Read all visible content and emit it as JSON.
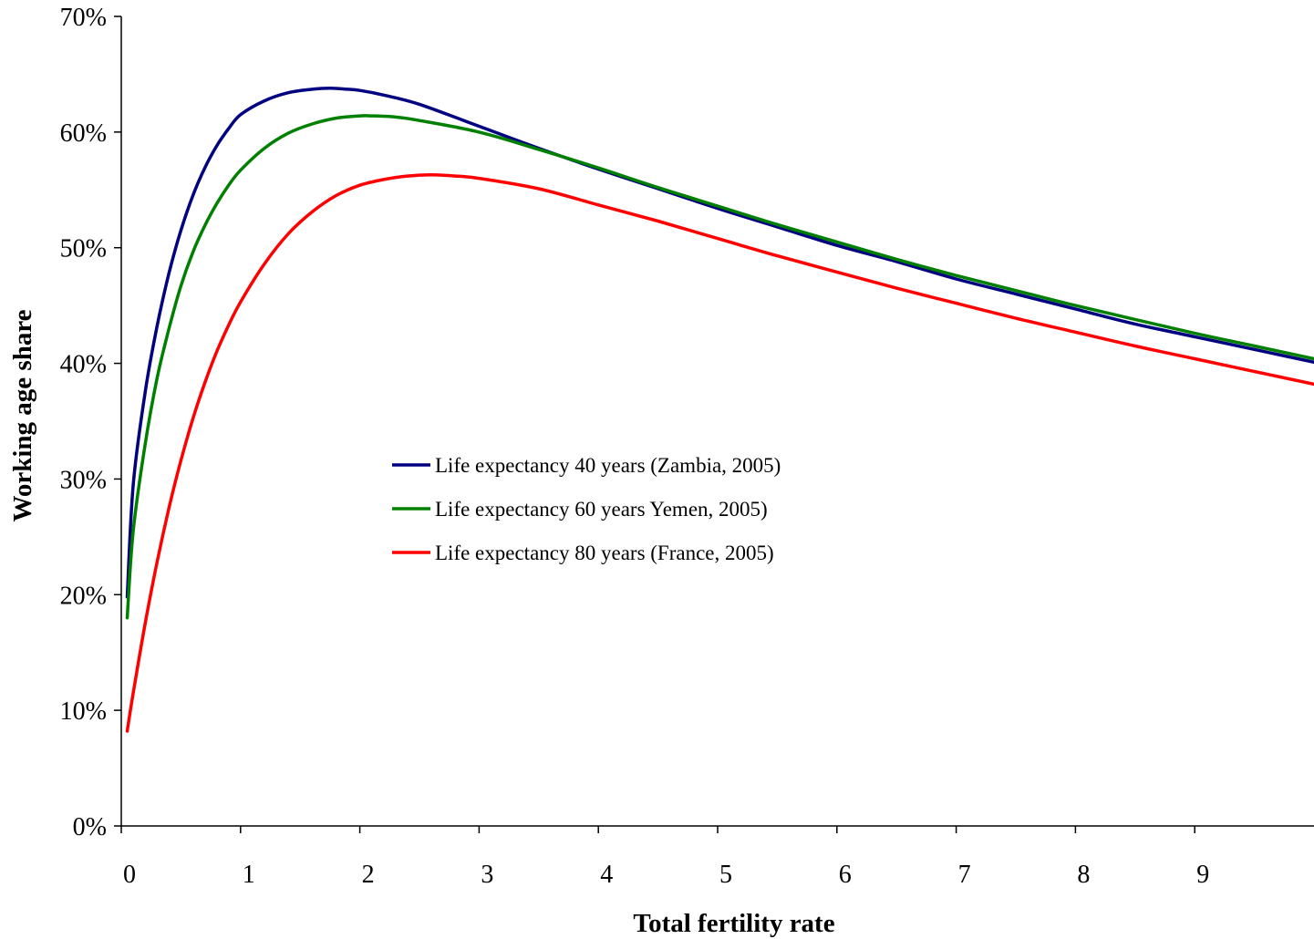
{
  "chart_data": {
    "type": "line",
    "title": "",
    "xlabel": "Total fertility rate",
    "ylabel": "Working age share",
    "xlim": [
      0,
      10
    ],
    "ylim": [
      0,
      70
    ],
    "x_ticks": [
      0,
      1,
      2,
      3,
      4,
      5,
      6,
      7,
      8,
      9
    ],
    "x_tick_labels": [
      "0",
      "1",
      "2",
      "3",
      "4",
      "5",
      "6",
      "7",
      "8",
      "9"
    ],
    "y_ticks": [
      0,
      10,
      20,
      30,
      40,
      50,
      60,
      70
    ],
    "y_tick_labels": [
      "0%",
      "10%",
      "20%",
      "30%",
      "40%",
      "50%",
      "60%",
      "70%"
    ],
    "grid": false,
    "legend_position": "center",
    "series": [
      {
        "name": "Life expectancy 40 years (Zambia, 2005)",
        "color": "#000080",
        "x": [
          0.05,
          0.1,
          0.2,
          0.3,
          0.4,
          0.5,
          0.6,
          0.7,
          0.8,
          0.9,
          1.0,
          1.2,
          1.4,
          1.6,
          1.75,
          1.9,
          2.0,
          2.2,
          2.5,
          3.0,
          3.5,
          4.0,
          4.5,
          5.0,
          5.5,
          6.0,
          6.5,
          7.0,
          7.5,
          8.0,
          8.5,
          9.0,
          9.5,
          10.0
        ],
        "values": [
          19.8,
          29.5,
          37.5,
          43.2,
          47.8,
          51.5,
          54.5,
          56.9,
          58.8,
          60.3,
          61.5,
          62.7,
          63.4,
          63.7,
          63.8,
          63.7,
          63.6,
          63.2,
          62.4,
          60.5,
          58.6,
          56.8,
          55.1,
          53.4,
          51.8,
          50.2,
          48.8,
          47.3,
          46.0,
          44.7,
          43.4,
          42.3,
          41.2,
          40.1
        ]
      },
      {
        "name": "Life expectancy 60 years Yemen, 2005)",
        "color": "#008000",
        "x": [
          0.05,
          0.1,
          0.2,
          0.3,
          0.4,
          0.5,
          0.6,
          0.7,
          0.8,
          0.9,
          1.0,
          1.2,
          1.4,
          1.6,
          1.8,
          2.0,
          2.1,
          2.3,
          2.5,
          3.0,
          3.5,
          4.0,
          4.5,
          5.0,
          5.5,
          6.0,
          6.5,
          7.0,
          7.5,
          8.0,
          8.5,
          9.0,
          9.5,
          10.0
        ],
        "values": [
          18.0,
          25.5,
          33.0,
          38.7,
          43.0,
          46.7,
          49.6,
          51.9,
          53.8,
          55.4,
          56.7,
          58.6,
          59.9,
          60.7,
          61.2,
          61.4,
          61.4,
          61.3,
          61.0,
          60.0,
          58.5,
          56.9,
          55.2,
          53.6,
          52.0,
          50.5,
          49.0,
          47.6,
          46.3,
          45.0,
          43.8,
          42.6,
          41.5,
          40.4
        ]
      },
      {
        "name": "Life expectancy 80 years (France, 2005)",
        "color": "#ff0000",
        "x": [
          0.05,
          0.1,
          0.2,
          0.3,
          0.4,
          0.5,
          0.6,
          0.7,
          0.8,
          0.9,
          1.0,
          1.2,
          1.4,
          1.6,
          1.8,
          2.0,
          2.2,
          2.4,
          2.6,
          2.8,
          3.0,
          3.5,
          4.0,
          4.5,
          5.0,
          5.5,
          6.0,
          6.5,
          7.0,
          7.5,
          8.0,
          8.5,
          9.0,
          9.5,
          10.0
        ],
        "values": [
          8.2,
          11.5,
          17.5,
          22.8,
          27.5,
          31.6,
          35.2,
          38.3,
          41.0,
          43.3,
          45.3,
          48.6,
          51.2,
          53.1,
          54.5,
          55.4,
          55.9,
          56.2,
          56.3,
          56.2,
          56.0,
          55.1,
          53.7,
          52.3,
          50.8,
          49.3,
          47.9,
          46.5,
          45.2,
          43.9,
          42.7,
          41.5,
          40.4,
          39.3,
          38.2
        ]
      }
    ]
  }
}
